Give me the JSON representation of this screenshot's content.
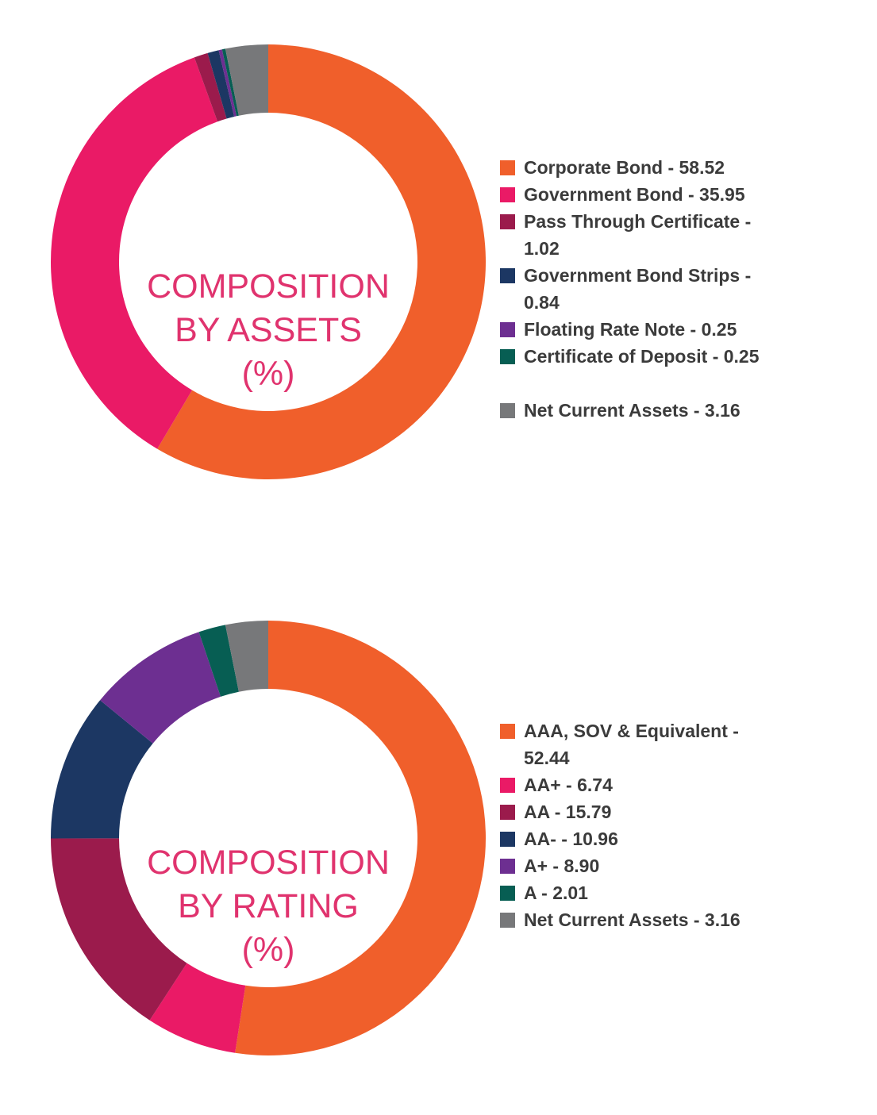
{
  "chart_data": [
    {
      "type": "pie",
      "center_title": [
        "COMPOSITION",
        "BY ASSETS",
        "(%)"
      ],
      "slices": [
        {
          "label": "Corporate Bond - 58.52",
          "value": 58.52,
          "color": "#f05f2b"
        },
        {
          "label": "Government Bond - 35.95",
          "value": 35.95,
          "color": "#ea1a66"
        },
        {
          "label": "Pass Through Certificate - 1.02",
          "value": 1.02,
          "color": "#9b1b4c"
        },
        {
          "label": "Government Bond Strips - 0.84",
          "value": 0.84,
          "color": "#1c3763"
        },
        {
          "label": "Floating Rate Note - 0.25",
          "value": 0.25,
          "color": "#6d2f91"
        },
        {
          "label": "Certificate of Deposit - 0.25",
          "value": 0.25,
          "color": "#075e53"
        },
        {
          "label": "Net Current Assets - 3.16",
          "value": 3.16,
          "color": "#77787a"
        }
      ]
    },
    {
      "type": "pie",
      "center_title": [
        "COMPOSITION",
        "BY RATING",
        "(%)"
      ],
      "slices": [
        {
          "label": "AAA, SOV & Equivalent - 52.44",
          "value": 52.44,
          "color": "#f05f2b"
        },
        {
          "label": "AA+ - 6.74",
          "value": 6.74,
          "color": "#ea1a66"
        },
        {
          "label": "AA - 15.79",
          "value": 15.79,
          "color": "#9b1b4c"
        },
        {
          "label": "AA- - 10.96",
          "value": 10.96,
          "color": "#1c3763"
        },
        {
          "label": "A+ - 8.90",
          "value": 8.9,
          "color": "#6d2f91"
        },
        {
          "label": "A - 2.01",
          "value": 2.01,
          "color": "#075e53"
        },
        {
          "label": "Net Current Assets - 3.16",
          "value": 3.16,
          "color": "#77787a"
        }
      ]
    }
  ]
}
